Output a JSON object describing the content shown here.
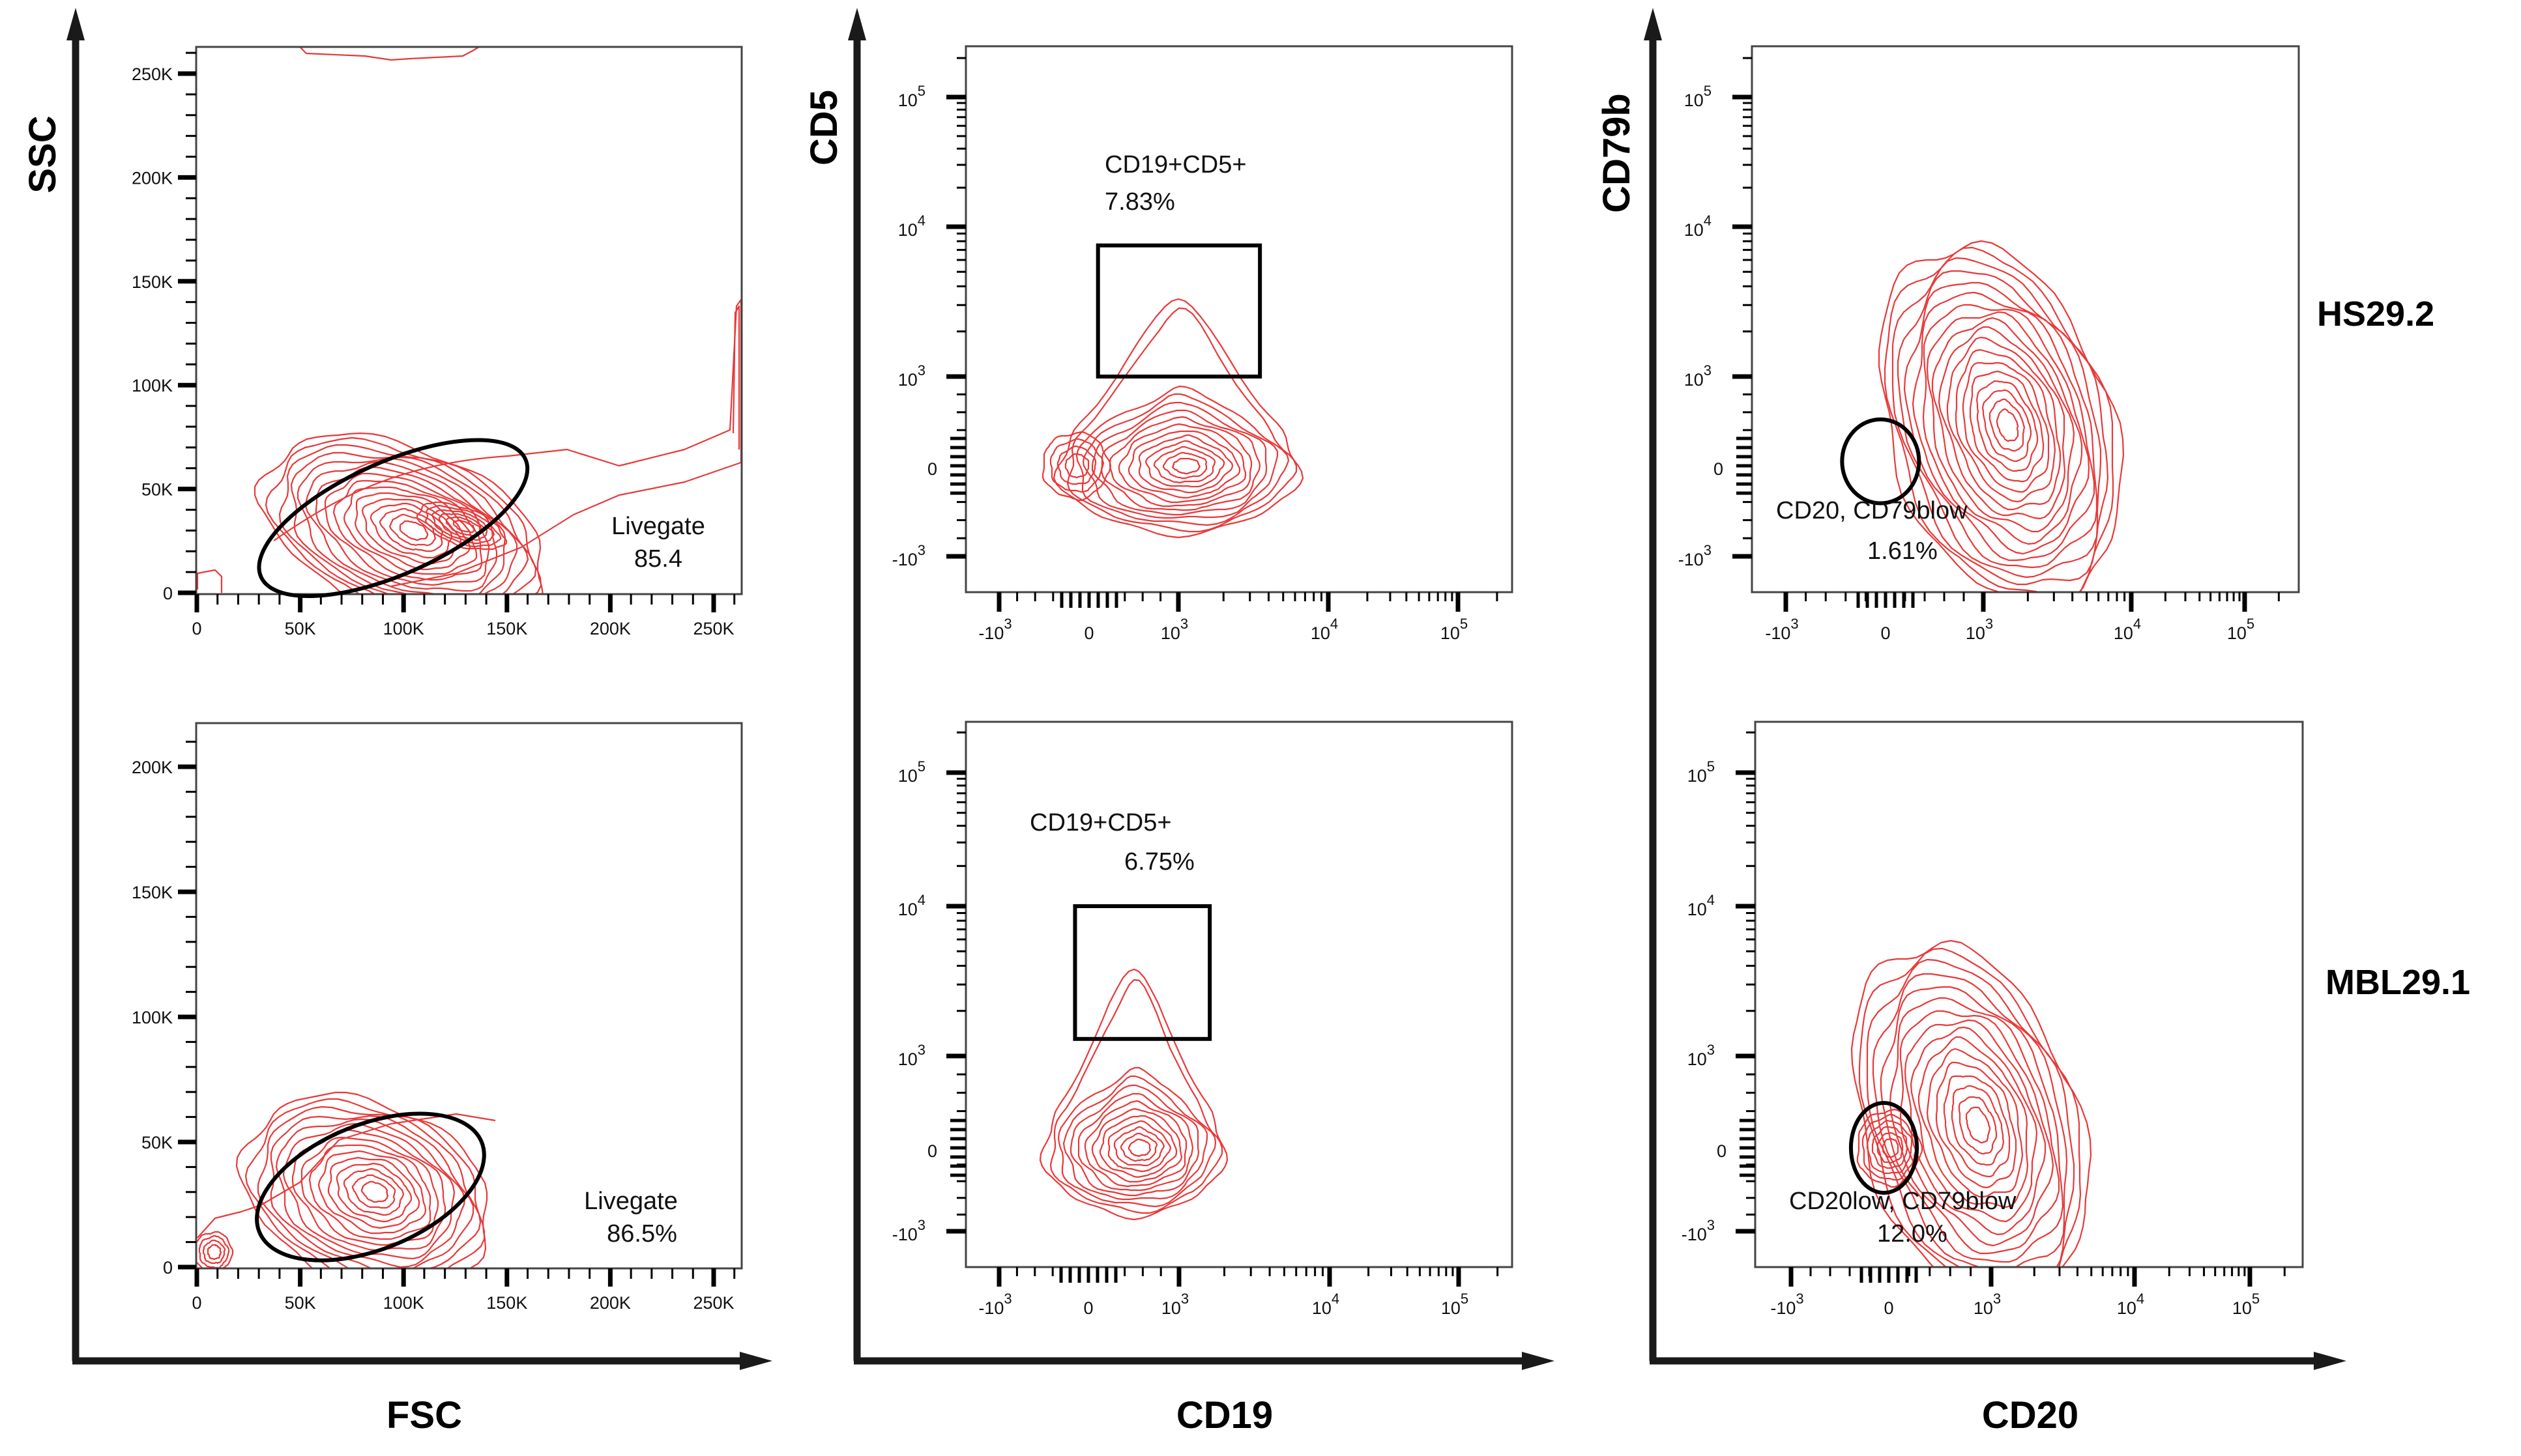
{
  "colors": {
    "contour": "#e8393a",
    "gate": "#000000",
    "axis": "#1a1a1a",
    "frame": "#444444"
  },
  "axis_titles": {
    "col1_y": "SSC",
    "col1_x": "FSC",
    "col2_y": "CD5",
    "col2_x": "CD19",
    "col3_y": "CD79b",
    "col3_x": "CD20"
  },
  "row_labels": [
    "HS29.2",
    "MBL29.1"
  ],
  "chart_data": [
    {
      "type": "contour",
      "id": "r1c1",
      "row": "HS29.2",
      "xlabel": "FSC",
      "ylabel": "SSC",
      "xscale": "linear",
      "yscale": "linear",
      "xlim": [
        0,
        262000
      ],
      "ylim": [
        0,
        262000
      ],
      "xticks": [
        {
          "v": 0,
          "t": "0"
        },
        {
          "v": 50000,
          "t": "50K"
        },
        {
          "v": 100000,
          "t": "100K"
        },
        {
          "v": 150000,
          "t": "150K"
        },
        {
          "v": 200000,
          "t": "200K"
        },
        {
          "v": 250000,
          "t": "250K"
        }
      ],
      "yticks": [
        {
          "v": 0,
          "t": "0"
        },
        {
          "v": 50000,
          "t": "50K"
        },
        {
          "v": 100000,
          "t": "100K"
        },
        {
          "v": 150000,
          "t": "150K"
        },
        {
          "v": 200000,
          "t": "200K"
        },
        {
          "v": 250000,
          "t": "250K"
        }
      ],
      "populations": [
        {
          "cx": 100000,
          "cy": 30000,
          "rx": 72000,
          "ry": 40000,
          "angle": 22,
          "levels": 16
        },
        {
          "cx": 128000,
          "cy": 32000,
          "rx": 22000,
          "ry": 9000,
          "angle": 20,
          "levels": 6
        }
      ],
      "gate": {
        "shape": "ellipse",
        "cx": 95000,
        "cy": 36000,
        "rx": 70000,
        "ry": 27000,
        "angle": 24,
        "name": "Livegate",
        "value": "85.4"
      },
      "gate_label": [
        "Livegate",
        "85.4"
      ]
    },
    {
      "type": "contour",
      "id": "r2c1",
      "row": "MBL29.1",
      "xlabel": "FSC",
      "ylabel": "SSC",
      "xscale": "linear",
      "yscale": "linear",
      "xlim": [
        0,
        262000
      ],
      "ylim": [
        0,
        217000
      ],
      "xticks": [
        {
          "v": 0,
          "t": "0"
        },
        {
          "v": 50000,
          "t": "50K"
        },
        {
          "v": 100000,
          "t": "100K"
        },
        {
          "v": 150000,
          "t": "150K"
        },
        {
          "v": 200000,
          "t": "200K"
        },
        {
          "v": 250000,
          "t": "250K"
        }
      ],
      "yticks": [
        {
          "v": 0,
          "t": "0"
        },
        {
          "v": 50000,
          "t": "50K"
        },
        {
          "v": 100000,
          "t": "100K"
        },
        {
          "v": 150000,
          "t": "150K"
        },
        {
          "v": 200000,
          "t": "200K"
        }
      ],
      "populations": [
        {
          "cx": 82000,
          "cy": 30000,
          "rx": 62000,
          "ry": 36000,
          "angle": 22,
          "levels": 15
        },
        {
          "cx": 8000,
          "cy": 6000,
          "rx": 9000,
          "ry": 8000,
          "angle": 0,
          "levels": 4
        }
      ],
      "gate": {
        "shape": "ellipse",
        "cx": 84000,
        "cy": 32000,
        "rx": 58000,
        "ry": 25000,
        "angle": 22,
        "name": "Livegate",
        "value": "86.5%"
      },
      "gate_label": [
        "Livegate",
        "86.5%"
      ]
    },
    {
      "type": "contour",
      "id": "r1c2",
      "row": "HS29.2",
      "xlabel": "CD19",
      "ylabel": "CD5",
      "xscale": "biexponential",
      "yscale": "biexponential",
      "xticks": [
        {
          "v": -1000,
          "t": "-10",
          "e": "3"
        },
        {
          "v": 0,
          "t": "0"
        },
        {
          "v": 1000,
          "t": "10",
          "e": "3"
        },
        {
          "v": 10000,
          "t": "10",
          "e": "4"
        },
        {
          "v": 100000,
          "t": "10",
          "e": "5"
        }
      ],
      "yticks": [
        {
          "v": -1000,
          "t": "-10",
          "e": "3"
        },
        {
          "v": 0,
          "t": "0"
        },
        {
          "v": 1000,
          "t": "10",
          "e": "3"
        },
        {
          "v": 10000,
          "t": "10",
          "e": "4"
        },
        {
          "v": 100000,
          "t": "10",
          "e": "5"
        }
      ],
      "populations": [
        {
          "cx": 1000,
          "cy": 0,
          "rx": 0.8,
          "ry": 0.45,
          "angle": 0,
          "levels": 14,
          "peak_up": 0.85
        },
        {
          "cx": -150,
          "cy": 0,
          "rx": 0.22,
          "ry": 0.22,
          "angle": 0,
          "levels": 4
        }
      ],
      "gate": {
        "shape": "rectangle",
        "x0": 100,
        "x1": 3500,
        "y0": 1000,
        "y1": 7500,
        "name": "CD19+CD5+",
        "value": "7.83%"
      },
      "gate_label": [
        "CD19+CD5+",
        "7.83%"
      ]
    },
    {
      "type": "contour",
      "id": "r2c2",
      "row": "MBL29.1",
      "xlabel": "CD19",
      "ylabel": "CD5",
      "xscale": "biexponential",
      "yscale": "biexponential",
      "xticks": [
        {
          "v": -1000,
          "t": "-10",
          "e": "3"
        },
        {
          "v": 0,
          "t": "0"
        },
        {
          "v": 1000,
          "t": "10",
          "e": "3"
        },
        {
          "v": 10000,
          "t": "10",
          "e": "4"
        },
        {
          "v": 100000,
          "t": "10",
          "e": "5"
        }
      ],
      "yticks": [
        {
          "v": -1000,
          "t": "-10",
          "e": "3"
        },
        {
          "v": 0,
          "t": "0"
        },
        {
          "v": 1000,
          "t": "10",
          "e": "3"
        },
        {
          "v": 10000,
          "t": "10",
          "e": "4"
        },
        {
          "v": 100000,
          "t": "10",
          "e": "5"
        }
      ],
      "populations": [
        {
          "cx": 500,
          "cy": 0,
          "rx": 0.6,
          "ry": 0.45,
          "angle": 0,
          "levels": 13,
          "peak_up": 0.95
        }
      ],
      "gate": {
        "shape": "rectangle",
        "x0": -150,
        "x1": 1600,
        "y0": 1300,
        "y1": 10000,
        "name": "CD19+CD5+",
        "value": "6.75%"
      },
      "gate_label": [
        "CD19+CD5+",
        "6.75%"
      ]
    },
    {
      "type": "contour",
      "id": "r1c3",
      "row": "HS29.2",
      "xlabel": "CD20",
      "ylabel": "CD79b",
      "xscale": "biexponential",
      "yscale": "biexponential",
      "xticks": [
        {
          "v": -1000,
          "t": "-10",
          "e": "3"
        },
        {
          "v": 0,
          "t": "0"
        },
        {
          "v": 1000,
          "t": "10",
          "e": "3"
        },
        {
          "v": 10000,
          "t": "10",
          "e": "4"
        },
        {
          "v": 100000,
          "t": "10",
          "e": "5"
        }
      ],
      "yticks": [
        {
          "v": -1000,
          "t": "-10",
          "e": "3"
        },
        {
          "v": 0,
          "t": "0"
        },
        {
          "v": 1000,
          "t": "10",
          "e": "3"
        },
        {
          "v": 10000,
          "t": "10",
          "e": "4"
        },
        {
          "v": 100000,
          "t": "10",
          "e": "5"
        }
      ],
      "populations": [
        {
          "cx": 1300,
          "cy": 450,
          "rx": 0.75,
          "ry": 1.25,
          "angle": -18,
          "levels": 18
        }
      ],
      "gate": {
        "shape": "ellipse",
        "cx": -50,
        "cy": 50,
        "rx": 0.26,
        "ry": 0.28,
        "angle": 0,
        "name": "CD20, CD79blow",
        "value": "1.61%"
      },
      "gate_label": [
        "CD20, CD79blow",
        "1.61%"
      ]
    },
    {
      "type": "contour",
      "id": "r2c3",
      "row": "MBL29.1",
      "xlabel": "CD20",
      "ylabel": "CD79b",
      "xscale": "biexponential",
      "yscale": "biexponential",
      "xticks": [
        {
          "v": -1000,
          "t": "-10",
          "e": "3"
        },
        {
          "v": 0,
          "t": "0"
        },
        {
          "v": 1000,
          "t": "10",
          "e": "3"
        },
        {
          "v": 10000,
          "t": "10",
          "e": "4"
        },
        {
          "v": 100000,
          "t": "10",
          "e": "5"
        }
      ],
      "yticks": [
        {
          "v": -1000,
          "t": "-10",
          "e": "3"
        },
        {
          "v": 0,
          "t": "0"
        },
        {
          "v": 1000,
          "t": "10",
          "e": "3"
        },
        {
          "v": 10000,
          "t": "10",
          "e": "4"
        },
        {
          "v": 100000,
          "t": "10",
          "e": "5"
        }
      ],
      "populations": [
        {
          "cx": 800,
          "cy": 250,
          "rx": 0.75,
          "ry": 1.25,
          "angle": -18,
          "levels": 16
        },
        {
          "cx": 0,
          "cy": 0,
          "rx": 0.22,
          "ry": 0.25,
          "angle": 0,
          "levels": 6
        }
      ],
      "gate": {
        "shape": "ellipse",
        "cx": -50,
        "cy": 0,
        "rx": 0.23,
        "ry": 0.3,
        "angle": 0,
        "name": "CD20low, CD79blow",
        "value": "12.0%"
      },
      "gate_label": [
        "CD20low, CD79blow",
        "12.0%"
      ]
    }
  ]
}
